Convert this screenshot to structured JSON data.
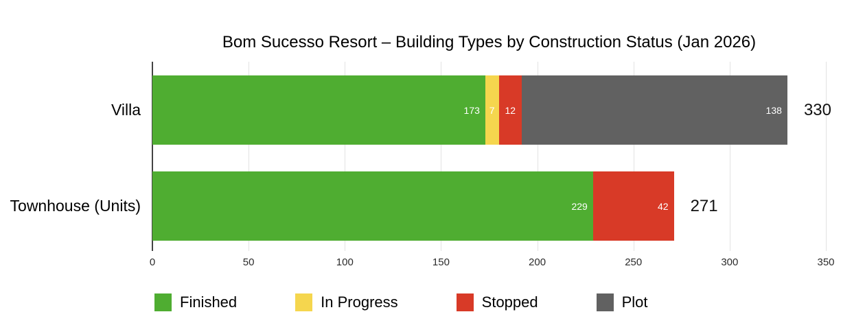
{
  "title": "Bom Sucesso Resort – Building Types by Construction Status (Jan 2026)",
  "chart_data": {
    "type": "bar",
    "orientation": "horizontal",
    "stacked": true,
    "title": "Bom Sucesso Resort – Building Types by Construction Status (Jan 2026)",
    "categories": [
      "Villa",
      "Townhouse (Units)"
    ],
    "series": [
      {
        "name": "Finished",
        "color": "#4fad31",
        "values": [
          173,
          229
        ]
      },
      {
        "name": "In Progress",
        "color": "#f5d64e",
        "values": [
          7,
          0
        ]
      },
      {
        "name": "Stopped",
        "color": "#d83a27",
        "values": [
          12,
          42
        ]
      },
      {
        "name": "Plot",
        "color": "#616161",
        "values": [
          138,
          0
        ]
      }
    ],
    "segment_labels": [
      [
        "173",
        "7",
        "12",
        "138"
      ],
      [
        "229",
        "",
        "42",
        ""
      ]
    ],
    "totals": [
      "330",
      "271"
    ],
    "x_ticks": [
      "0",
      "50",
      "100",
      "150",
      "200",
      "250",
      "300",
      "350"
    ],
    "x_tick_values": [
      0,
      50,
      100,
      150,
      200,
      250,
      300,
      350
    ],
    "xlim": [
      0,
      350
    ],
    "grid": true,
    "legend_position": "bottom",
    "value_label_color": "#ffffff",
    "gridline_color": "#e2e2e2",
    "axis_line_color": "#444444"
  }
}
